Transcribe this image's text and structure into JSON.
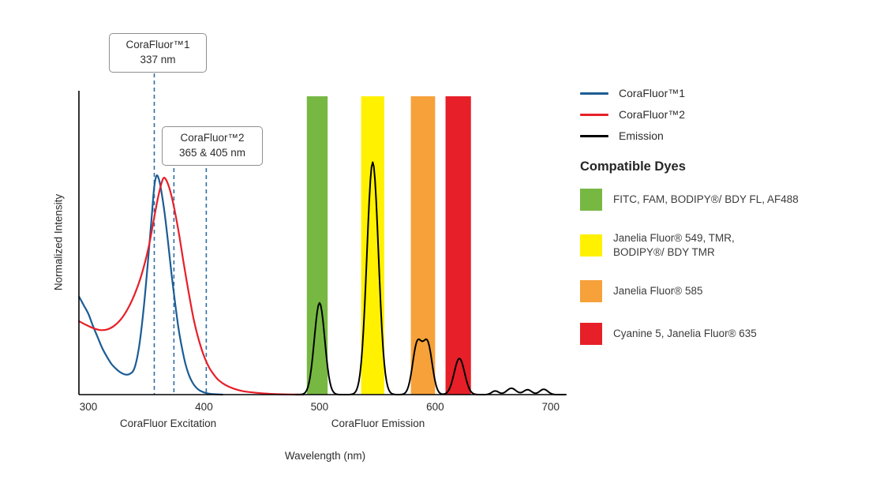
{
  "annotations": [
    {
      "title": "CoraFluor™1",
      "value": "337 nm"
    },
    {
      "title": "CoraFluor™2",
      "value": "365 & 405 nm"
    }
  ],
  "legend": {
    "dyes_title": "Compatible Dyes"
  },
  "chart_data": {
    "type": "line",
    "title": "",
    "xlabel": "Wavelength (nm)",
    "ylabel": "Normalized Intensity",
    "x_ticks": [
      300,
      400,
      500,
      600,
      700
    ],
    "xlim": [
      292,
      715
    ],
    "ylim": [
      0,
      1.2
    ],
    "grid": false,
    "legend_position": "right",
    "x_group_labels": [
      "CoraFluor Excitation",
      "CoraFluor Emission"
    ],
    "marker_color": "#2e6da4",
    "markers": [
      {
        "nm": 357,
        "group": "cf1"
      },
      {
        "nm": 374,
        "group": "cf2"
      },
      {
        "nm": 402,
        "group": "cf2"
      }
    ],
    "series": [
      {
        "name": "CoraFluor™1",
        "color": "#1b5c94",
        "points": [
          [
            292,
            0.4
          ],
          [
            296,
            0.365
          ],
          [
            300,
            0.33
          ],
          [
            304,
            0.28
          ],
          [
            308,
            0.235
          ],
          [
            312,
            0.19
          ],
          [
            316,
            0.155
          ],
          [
            320,
            0.125
          ],
          [
            324,
            0.105
          ],
          [
            328,
            0.09
          ],
          [
            332,
            0.082
          ],
          [
            336,
            0.085
          ],
          [
            340,
            0.11
          ],
          [
            344,
            0.2
          ],
          [
            348,
            0.36
          ],
          [
            352,
            0.57
          ],
          [
            355,
            0.74
          ],
          [
            357,
            0.85
          ],
          [
            359,
            0.895
          ],
          [
            361,
            0.88
          ],
          [
            363,
            0.835
          ],
          [
            366,
            0.74
          ],
          [
            369,
            0.62
          ],
          [
            372,
            0.49
          ],
          [
            375,
            0.375
          ],
          [
            378,
            0.27
          ],
          [
            381,
            0.19
          ],
          [
            384,
            0.125
          ],
          [
            387,
            0.08
          ],
          [
            390,
            0.05
          ],
          [
            393,
            0.03
          ],
          [
            396,
            0.018
          ],
          [
            400,
            0.009
          ],
          [
            404,
            0.004
          ],
          [
            408,
            0.002
          ],
          [
            412,
            0.001
          ],
          [
            416,
            0
          ]
        ]
      },
      {
        "name": "CoraFluor™2",
        "color": "#e71f28",
        "points": [
          [
            292,
            0.3
          ],
          [
            298,
            0.285
          ],
          [
            304,
            0.272
          ],
          [
            310,
            0.264
          ],
          [
            316,
            0.266
          ],
          [
            322,
            0.28
          ],
          [
            328,
            0.307
          ],
          [
            334,
            0.35
          ],
          [
            340,
            0.41
          ],
          [
            346,
            0.49
          ],
          [
            352,
            0.6
          ],
          [
            356,
            0.7
          ],
          [
            360,
            0.8
          ],
          [
            363,
            0.86
          ],
          [
            365,
            0.885
          ],
          [
            367,
            0.88
          ],
          [
            370,
            0.845
          ],
          [
            373,
            0.79
          ],
          [
            376,
            0.72
          ],
          [
            379,
            0.64
          ],
          [
            382,
            0.55
          ],
          [
            385,
            0.465
          ],
          [
            388,
            0.385
          ],
          [
            391,
            0.31
          ],
          [
            394,
            0.25
          ],
          [
            397,
            0.2
          ],
          [
            400,
            0.158
          ],
          [
            404,
            0.115
          ],
          [
            408,
            0.085
          ],
          [
            412,
            0.062
          ],
          [
            416,
            0.047
          ],
          [
            420,
            0.036
          ],
          [
            426,
            0.024
          ],
          [
            432,
            0.016
          ],
          [
            438,
            0.011
          ],
          [
            446,
            0.007
          ],
          [
            454,
            0.004
          ],
          [
            462,
            0.002
          ],
          [
            470,
            0.001
          ],
          [
            478,
            0.0005
          ],
          [
            486,
            0
          ]
        ]
      },
      {
        "name": "Emission",
        "color": "#000000",
        "peaks": [
          {
            "center": 500,
            "height": 0.375,
            "width": 4.5
          },
          {
            "center": 546,
            "height": 0.95,
            "width": 5
          },
          {
            "center": 584.5,
            "height": 0.205,
            "width": 4
          },
          {
            "center": 593.5,
            "height": 0.205,
            "width": 4
          },
          {
            "center": 621,
            "height": 0.148,
            "width": 4.5
          },
          {
            "center": 652,
            "height": 0.015,
            "width": 3
          },
          {
            "center": 666,
            "height": 0.026,
            "width": 4
          },
          {
            "center": 680,
            "height": 0.02,
            "width": 3.5
          },
          {
            "center": 694,
            "height": 0.022,
            "width": 3.5
          }
        ]
      }
    ],
    "bands": [
      {
        "label": "FITC, FAM, BODIPY®/ BDY FL, AF488",
        "color": "#77b843",
        "from": 489,
        "to": 507
      },
      {
        "label": "Janelia Fluor® 549, TMR,\nBODIPY®/ BDY TMR",
        "color": "#fff100",
        "from": 536,
        "to": 556
      },
      {
        "label": "Janelia Fluor® 585",
        "color": "#f6a13a",
        "from": 579,
        "to": 600
      },
      {
        "label": "Cyanine 5, Janelia Fluor® 635",
        "color": "#e71f28",
        "from": 609,
        "to": 631
      }
    ]
  }
}
